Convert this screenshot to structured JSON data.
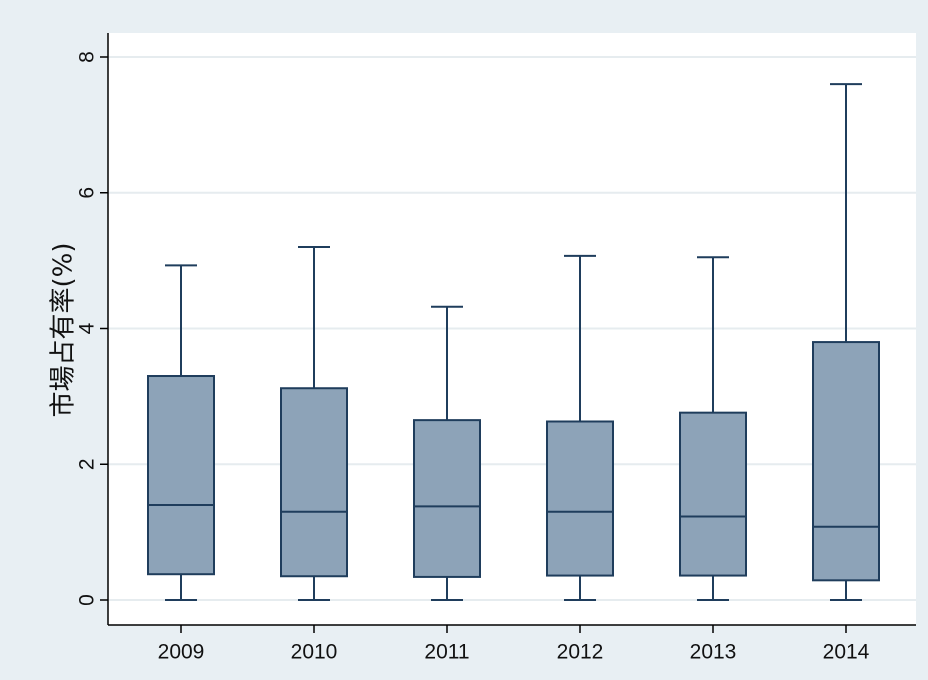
{
  "chart_data": {
    "type": "box",
    "title": "",
    "xlabel": "",
    "ylabel": "市場占有率(%)",
    "ylim": [
      0,
      8
    ],
    "yticks": [
      "0",
      "2",
      "4",
      "6",
      "8"
    ],
    "categories": [
      "2009",
      "2010",
      "2011",
      "2012",
      "2013",
      "2014"
    ],
    "boxes": [
      {
        "min": 0,
        "q1": 0.38,
        "median": 1.4,
        "q3": 3.3,
        "max": 4.93
      },
      {
        "min": 0,
        "q1": 0.35,
        "median": 1.3,
        "q3": 3.12,
        "max": 5.2
      },
      {
        "min": 0,
        "q1": 0.34,
        "median": 1.38,
        "q3": 2.65,
        "max": 4.32
      },
      {
        "min": 0,
        "q1": 0.36,
        "median": 1.3,
        "q3": 2.63,
        "max": 5.07
      },
      {
        "min": 0,
        "q1": 0.36,
        "median": 1.23,
        "q3": 2.76,
        "max": 5.05
      },
      {
        "min": 0,
        "q1": 0.29,
        "median": 1.08,
        "q3": 3.8,
        "max": 7.6
      }
    ],
    "grid": true,
    "colors": {
      "box_fill": "#8da3b8",
      "box_stroke": "#1f3d5c",
      "background": "#e8eff3",
      "plot_bg": "#ffffff",
      "grid": "#e6ecef"
    }
  }
}
